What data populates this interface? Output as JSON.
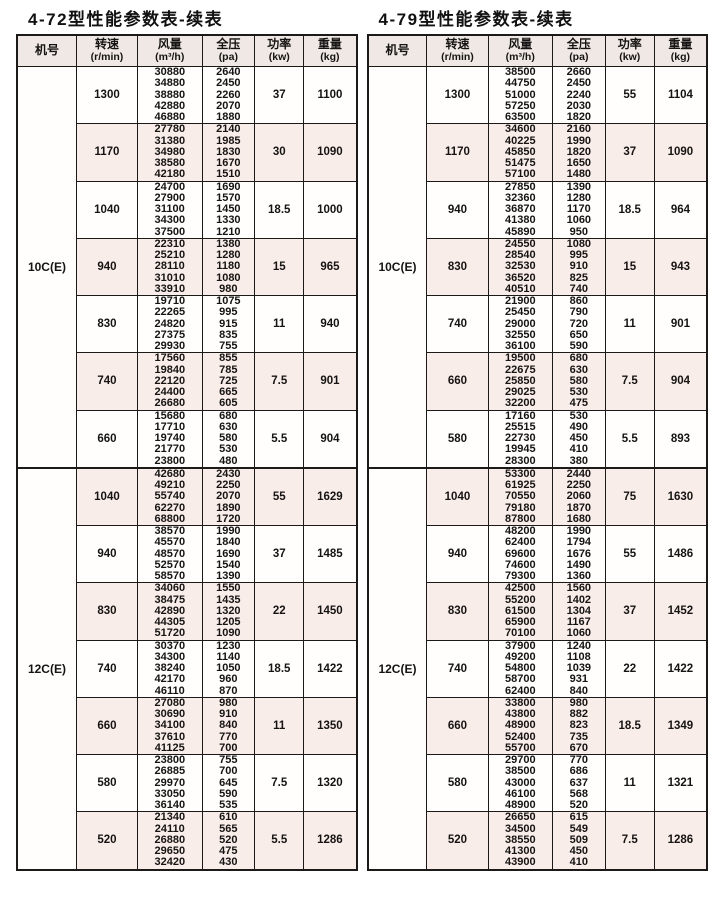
{
  "colors": {
    "stripe": "#f9edea",
    "header_bg": "#efe8e4",
    "border": "#1c1a19",
    "text": "#161412"
  },
  "tables": [
    {
      "title": "4-72型性能参数表-续表",
      "columns": [
        {
          "label": "机号",
          "unit": ""
        },
        {
          "label": "转速",
          "unit": "(r/min)"
        },
        {
          "label": "风量",
          "unit": "(m³/h)"
        },
        {
          "label": "全压",
          "unit": "(pa)"
        },
        {
          "label": "功率",
          "unit": "(kw)"
        },
        {
          "label": "重量",
          "unit": "(kg)"
        }
      ],
      "sections": [
        {
          "machine": "10C(E)",
          "groups": [
            {
              "speed": "1300",
              "flow": [
                "30880",
                "34880",
                "38880",
                "42880",
                "46880"
              ],
              "pressure": [
                "2640",
                "2450",
                "2260",
                "2070",
                "1880"
              ],
              "power": "37",
              "weight": "1100"
            },
            {
              "speed": "1170",
              "flow": [
                "27780",
                "31380",
                "34980",
                "38580",
                "42180"
              ],
              "pressure": [
                "2140",
                "1985",
                "1830",
                "1670",
                "1510"
              ],
              "power": "30",
              "weight": "1090"
            },
            {
              "speed": "1040",
              "flow": [
                "24700",
                "27900",
                "31100",
                "34300",
                "37500"
              ],
              "pressure": [
                "1690",
                "1570",
                "1450",
                "1330",
                "1210"
              ],
              "power": "18.5",
              "weight": "1000"
            },
            {
              "speed": "940",
              "flow": [
                "22310",
                "25210",
                "28110",
                "31010",
                "33910"
              ],
              "pressure": [
                "1380",
                "1280",
                "1180",
                "1080",
                "980"
              ],
              "power": "15",
              "weight": "965"
            },
            {
              "speed": "830",
              "flow": [
                "19710",
                "22265",
                "24820",
                "27375",
                "29930"
              ],
              "pressure": [
                "1075",
                "995",
                "915",
                "835",
                "755"
              ],
              "power": "11",
              "weight": "940"
            },
            {
              "speed": "740",
              "flow": [
                "17560",
                "19840",
                "22120",
                "24400",
                "26680"
              ],
              "pressure": [
                "855",
                "785",
                "725",
                "665",
                "605"
              ],
              "power": "7.5",
              "weight": "901"
            },
            {
              "speed": "660",
              "flow": [
                "15680",
                "17710",
                "19740",
                "21770",
                "23800"
              ],
              "pressure": [
                "680",
                "630",
                "580",
                "530",
                "480"
              ],
              "power": "5.5",
              "weight": "904"
            }
          ]
        },
        {
          "machine": "12C(E)",
          "groups": [
            {
              "speed": "1040",
              "flow": [
                "42680",
                "49210",
                "55740",
                "62270",
                "68800"
              ],
              "pressure": [
                "2430",
                "2250",
                "2070",
                "1890",
                "1720"
              ],
              "power": "55",
              "weight": "1629"
            },
            {
              "speed": "940",
              "flow": [
                "38570",
                "45570",
                "48570",
                "52570",
                "58570"
              ],
              "pressure": [
                "1990",
                "1840",
                "1690",
                "1540",
                "1390"
              ],
              "power": "37",
              "weight": "1485"
            },
            {
              "speed": "830",
              "flow": [
                "34060",
                "38475",
                "42890",
                "44305",
                "51720"
              ],
              "pressure": [
                "1550",
                "1435",
                "1320",
                "1205",
                "1090"
              ],
              "power": "22",
              "weight": "1450"
            },
            {
              "speed": "740",
              "flow": [
                "30370",
                "34300",
                "38240",
                "42170",
                "46110"
              ],
              "pressure": [
                "1230",
                "1140",
                "1050",
                "960",
                "870"
              ],
              "power": "18.5",
              "weight": "1422"
            },
            {
              "speed": "660",
              "flow": [
                "27080",
                "30690",
                "34100",
                "37610",
                "41125"
              ],
              "pressure": [
                "980",
                "910",
                "840",
                "770",
                "700"
              ],
              "power": "11",
              "weight": "1350"
            },
            {
              "speed": "580",
              "flow": [
                "23800",
                "26885",
                "29970",
                "33050",
                "36140"
              ],
              "pressure": [
                "755",
                "700",
                "645",
                "590",
                "535"
              ],
              "power": "7.5",
              "weight": "1320"
            },
            {
              "speed": "520",
              "flow": [
                "21340",
                "24110",
                "26880",
                "29650",
                "32420"
              ],
              "pressure": [
                "610",
                "565",
                "520",
                "475",
                "430"
              ],
              "power": "5.5",
              "weight": "1286"
            }
          ]
        }
      ]
    },
    {
      "title": "4-79型性能参数表-续表",
      "columns": [
        {
          "label": "机号",
          "unit": ""
        },
        {
          "label": "转速",
          "unit": "(r/min)"
        },
        {
          "label": "风量",
          "unit": "(m³/h)"
        },
        {
          "label": "全压",
          "unit": "(pa)"
        },
        {
          "label": "功率",
          "unit": "(kw)"
        },
        {
          "label": "重量",
          "unit": "(kg)"
        }
      ],
      "sections": [
        {
          "machine": "10C(E)",
          "groups": [
            {
              "speed": "1300",
              "flow": [
                "38500",
                "44750",
                "51000",
                "57250",
                "63500"
              ],
              "pressure": [
                "2660",
                "2450",
                "2240",
                "2030",
                "1820"
              ],
              "power": "55",
              "weight": "1104"
            },
            {
              "speed": "1170",
              "flow": [
                "34600",
                "40225",
                "45850",
                "51475",
                "57100"
              ],
              "pressure": [
                "2160",
                "1990",
                "1820",
                "1650",
                "1480"
              ],
              "power": "37",
              "weight": "1090"
            },
            {
              "speed": "940",
              "flow": [
                "27850",
                "32360",
                "36870",
                "41380",
                "45890"
              ],
              "pressure": [
                "1390",
                "1280",
                "1170",
                "1060",
                "950"
              ],
              "power": "18.5",
              "weight": "964"
            },
            {
              "speed": "830",
              "flow": [
                "24550",
                "28540",
                "32530",
                "36520",
                "40510"
              ],
              "pressure": [
                "1080",
                "995",
                "910",
                "825",
                "740"
              ],
              "power": "15",
              "weight": "943"
            },
            {
              "speed": "740",
              "flow": [
                "21900",
                "25450",
                "29000",
                "32550",
                "36100"
              ],
              "pressure": [
                "860",
                "790",
                "720",
                "650",
                "590"
              ],
              "power": "11",
              "weight": "901"
            },
            {
              "speed": "660",
              "flow": [
                "19500",
                "22675",
                "25850",
                "29025",
                "32200"
              ],
              "pressure": [
                "680",
                "630",
                "580",
                "530",
                "475"
              ],
              "power": "7.5",
              "weight": "904"
            },
            {
              "speed": "580",
              "flow": [
                "17160",
                "25515",
                "22730",
                "19945",
                "28300"
              ],
              "pressure": [
                "530",
                "490",
                "450",
                "410",
                "380"
              ],
              "power": "5.5",
              "weight": "893"
            }
          ]
        },
        {
          "machine": "12C(E)",
          "groups": [
            {
              "speed": "1040",
              "flow": [
                "53300",
                "61925",
                "70550",
                "79180",
                "87800"
              ],
              "pressure": [
                "2440",
                "2250",
                "2060",
                "1870",
                "1680"
              ],
              "power": "75",
              "weight": "1630"
            },
            {
              "speed": "940",
              "flow": [
                "48200",
                "62400",
                "69600",
                "74600",
                "79300"
              ],
              "pressure": [
                "1990",
                "1794",
                "1676",
                "1490",
                "1360"
              ],
              "power": "55",
              "weight": "1486"
            },
            {
              "speed": "830",
              "flow": [
                "42500",
                "55200",
                "61500",
                "65900",
                "70100"
              ],
              "pressure": [
                "1560",
                "1402",
                "1304",
                "1167",
                "1060"
              ],
              "power": "37",
              "weight": "1452"
            },
            {
              "speed": "740",
              "flow": [
                "37900",
                "49200",
                "54800",
                "58700",
                "62400"
              ],
              "pressure": [
                "1240",
                "1108",
                "1039",
                "931",
                "840"
              ],
              "power": "22",
              "weight": "1422"
            },
            {
              "speed": "660",
              "flow": [
                "33800",
                "43800",
                "48900",
                "52400",
                "55700"
              ],
              "pressure": [
                "980",
                "882",
                "823",
                "735",
                "670"
              ],
              "power": "18.5",
              "weight": "1349"
            },
            {
              "speed": "580",
              "flow": [
                "29700",
                "38500",
                "43000",
                "46100",
                "48900"
              ],
              "pressure": [
                "770",
                "686",
                "637",
                "568",
                "520"
              ],
              "power": "11",
              "weight": "1321"
            },
            {
              "speed": "520",
              "flow": [
                "26650",
                "34500",
                "38550",
                "41300",
                "43900"
              ],
              "pressure": [
                "615",
                "549",
                "509",
                "450",
                "410"
              ],
              "power": "7.5",
              "weight": "1286"
            }
          ]
        }
      ]
    }
  ]
}
